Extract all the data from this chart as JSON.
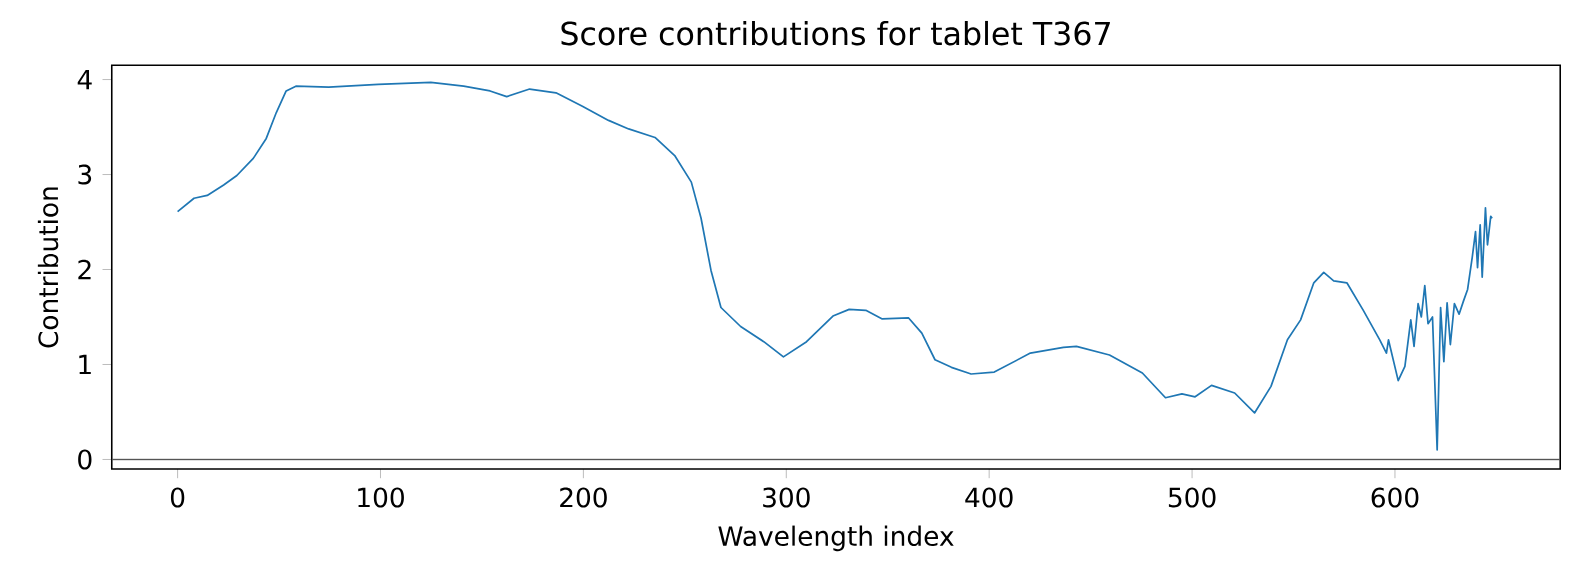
{
  "chart_data": {
    "type": "line",
    "title": "Score contributions for tablet T367",
    "xlabel": "Wavelength index",
    "ylabel": "Contribution",
    "x": [
      0,
      8.1,
      14.6,
      22.7,
      29.2,
      37.3,
      43.7,
      48.6,
      53.5,
      58.3,
      74.5,
      98.9,
      124.8,
      141,
      154,
      162.2,
      173.5,
      186.5,
      199.5,
      212.4,
      222.3,
      235.3,
      245,
      253.2,
      258,
      262.9,
      267.8,
      277.5,
      288.9,
      298.6,
      310,
      323,
      331,
      339.2,
      347.3,
      360.3,
      366.8,
      373.3,
      381.4,
      391.1,
      402.5,
      420.3,
      436.6,
      443,
      459.3,
      475.5,
      486.9,
      495,
      501.5,
      509.6,
      521,
      530.8,
      538.9,
      547,
      553.5,
      560,
      564.9,
      569.8,
      576.3,
      584.4,
      592.5,
      595.8,
      596.8,
      601.6,
      604.9,
      607.8,
      609.4,
      611.4,
      613,
      614.7,
      616.3,
      618.5,
      620.8,
      622.5,
      624.1,
      625.7,
      627.3,
      629.3,
      631.6,
      633.8,
      635.8,
      638.1,
      639.7,
      640.7,
      642,
      643,
      644.6,
      645.6,
      647.2,
      647.9
    ],
    "series": [
      {
        "color": "#1f77b4",
        "values": [
          2.61,
          2.75,
          2.78,
          2.89,
          2.99,
          3.17,
          3.38,
          3.65,
          3.88,
          3.93,
          3.92,
          3.95,
          3.97,
          3.93,
          3.88,
          3.82,
          3.9,
          3.86,
          3.72,
          3.57,
          3.48,
          3.39,
          3.2,
          2.92,
          2.54,
          1.99,
          1.6,
          1.4,
          1.24,
          1.08,
          1.24,
          1.51,
          1.58,
          1.57,
          1.48,
          1.49,
          1.33,
          1.05,
          0.97,
          0.9,
          0.92,
          1.12,
          1.18,
          1.19,
          1.1,
          0.91,
          0.65,
          0.69,
          0.66,
          0.78,
          0.7,
          0.49,
          0.77,
          1.26,
          1.47,
          1.86,
          1.97,
          1.88,
          1.86,
          1.57,
          1.26,
          1.12,
          1.26,
          0.83,
          0.98,
          1.47,
          1.19,
          1.64,
          1.5,
          1.83,
          1.43,
          1.5,
          0.1,
          1.6,
          1.03,
          1.65,
          1.21,
          1.64,
          1.53,
          1.67,
          1.79,
          2.13,
          2.4,
          2.02,
          2.47,
          1.92,
          2.65,
          2.26,
          2.56,
          2.54
        ]
      }
    ],
    "xlim": [
      -32.45,
      681.45
    ],
    "ylim": [
      -0.1,
      4.15
    ],
    "xticks": [
      0,
      100,
      200,
      300,
      400,
      500,
      600
    ],
    "yticks": [
      0,
      1,
      2,
      3,
      4
    ],
    "ref_lines": [
      {
        "axis": "y",
        "value": 0,
        "color": "#555555"
      }
    ]
  }
}
